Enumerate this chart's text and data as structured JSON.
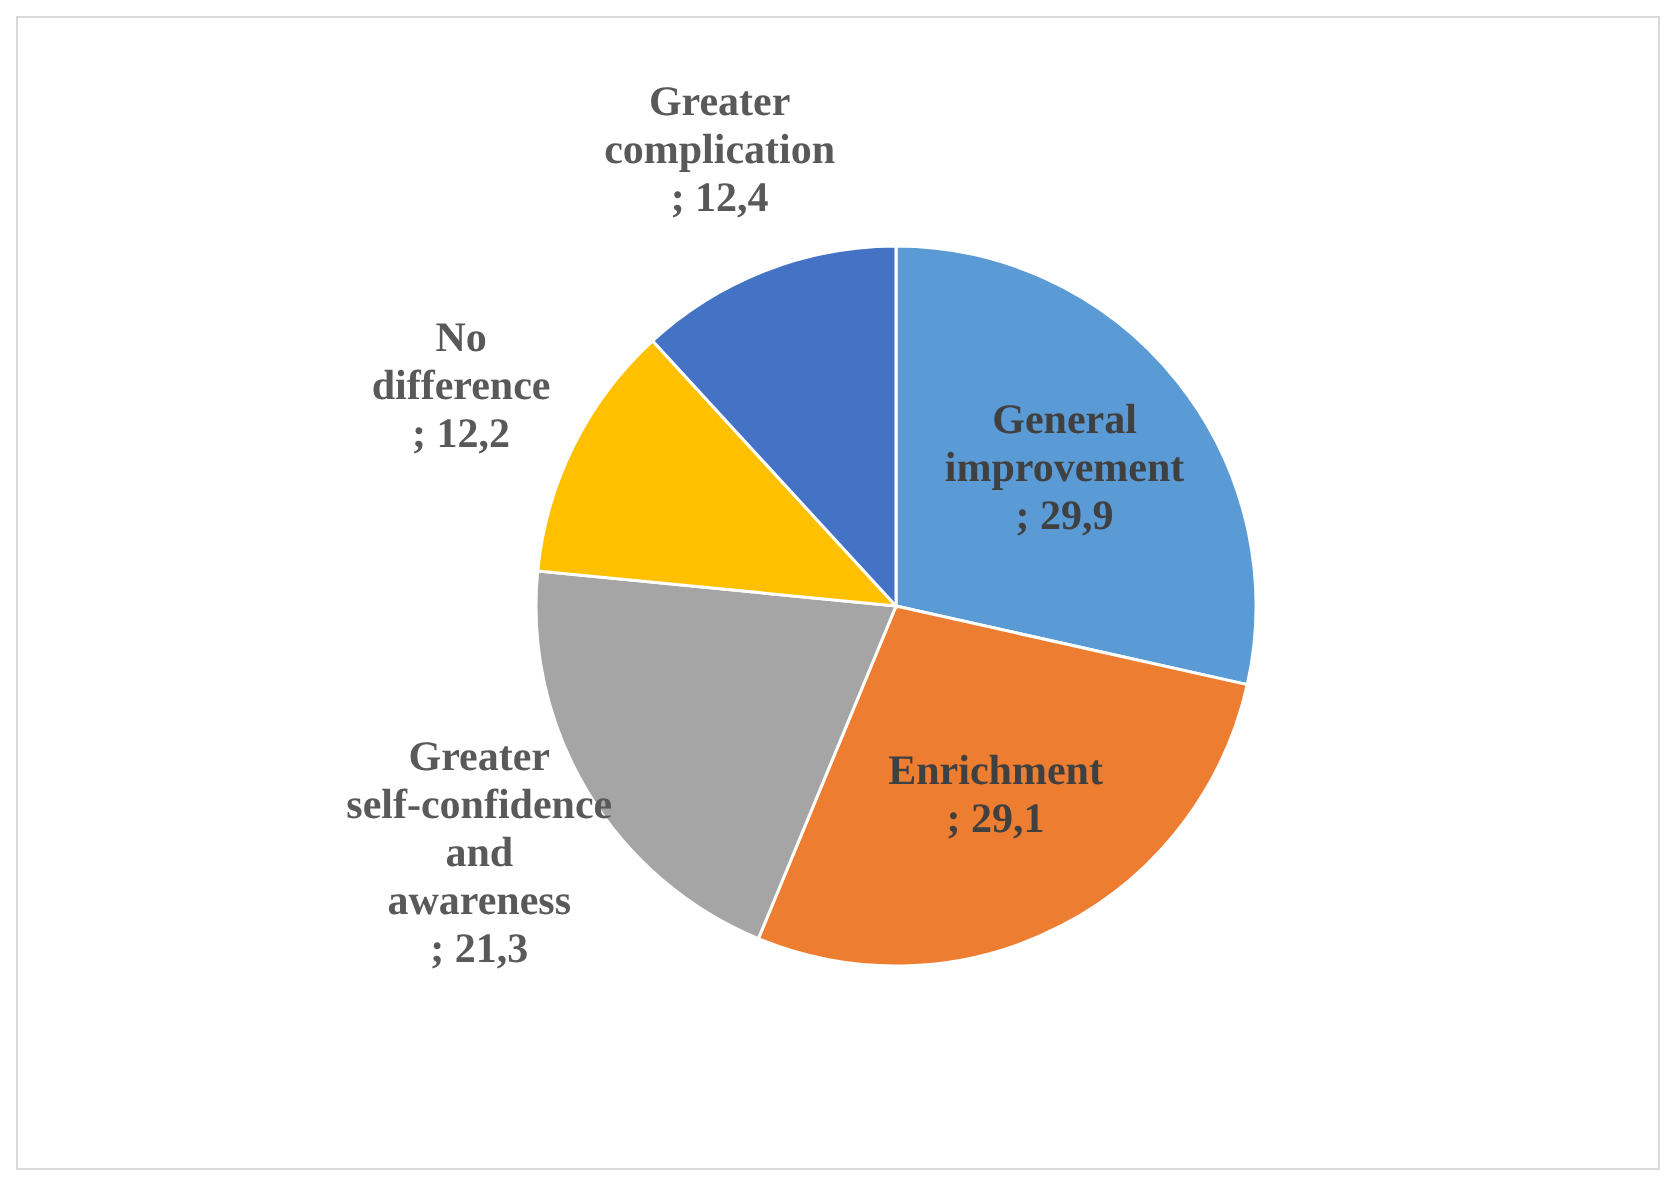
{
  "chart_data": {
    "type": "pie",
    "categories": [
      "General improvement",
      "Enrichment",
      "Greater self-confidence and awareness",
      "No difference",
      "Greater complication"
    ],
    "values": [
      29.9,
      29.1,
      21.3,
      12.2,
      12.4
    ],
    "value_labels": [
      "; 29,9",
      "; 29,1",
      "; 21,3",
      "; 12,2",
      "; 12,4"
    ],
    "colors": [
      "#5b9bd5",
      "#ed7d31",
      "#a5a5a5",
      "#ffc000",
      "#4472c4"
    ]
  }
}
